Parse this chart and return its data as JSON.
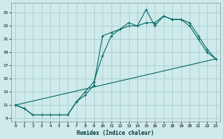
{
  "xlabel": "Humidex (Indice chaleur)",
  "bg_color": "#ceeaea",
  "grid_color": "#aacccc",
  "line_color": "#006666",
  "xlim": [
    -0.5,
    23.5
  ],
  "ylim": [
    8.5,
    26.5
  ],
  "xticks": [
    0,
    1,
    2,
    3,
    4,
    5,
    6,
    7,
    8,
    9,
    10,
    11,
    12,
    13,
    14,
    15,
    16,
    17,
    18,
    19,
    20,
    21,
    22,
    23
  ],
  "yticks": [
    9,
    11,
    13,
    15,
    17,
    19,
    21,
    23,
    25
  ],
  "curve1_x": [
    0,
    1,
    2,
    3,
    4,
    5,
    6,
    7,
    8,
    9,
    10,
    11,
    12,
    13,
    14,
    15,
    16,
    17,
    18,
    19,
    20,
    21,
    22,
    23
  ],
  "curve1_y": [
    11.0,
    10.5,
    9.5,
    9.5,
    9.5,
    9.5,
    9.5,
    11.5,
    12.5,
    14.0,
    21.5,
    22.0,
    22.5,
    23.5,
    23.0,
    25.5,
    23.0,
    24.5,
    24.0,
    24.0,
    23.5,
    21.5,
    19.5,
    18.0
  ],
  "curve2_x": [
    0,
    1,
    2,
    3,
    4,
    5,
    6,
    7,
    8,
    9,
    10,
    11,
    12,
    13,
    14,
    15,
    16,
    17,
    18,
    19,
    20,
    21,
    22,
    23
  ],
  "curve2_y": [
    11.0,
    10.5,
    9.5,
    9.5,
    9.5,
    9.5,
    9.5,
    11.5,
    13.0,
    14.5,
    18.5,
    21.5,
    22.5,
    23.0,
    23.0,
    23.5,
    23.5,
    24.5,
    24.0,
    24.0,
    23.0,
    21.0,
    19.0,
    18.0
  ],
  "curve3_x": [
    0,
    23
  ],
  "curve3_y": [
    11.0,
    18.0
  ]
}
